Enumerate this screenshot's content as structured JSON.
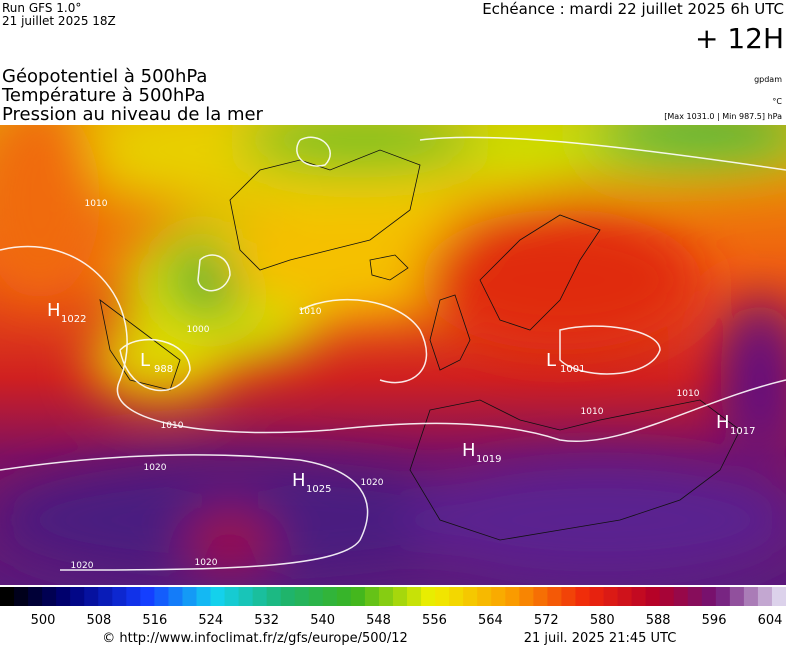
{
  "header": {
    "run": "Run GFS 1.0°",
    "run_date": "21 juillet 2025 18Z",
    "echeance": "Echéance : mardi 22 juillet 2025 6h UTC",
    "lead": "+ 12H"
  },
  "layers": [
    "Géopotentiel à 500hPa",
    "Température à 500hPa",
    "Pression au niveau de la mer"
  ],
  "units": [
    "gpdam",
    "°C",
    "[Max 1031.0 | Min 987.5] hPa"
  ],
  "pressure_centers": [
    {
      "type": "H",
      "value": "1022"
    },
    {
      "type": "L",
      "value": "988"
    },
    {
      "type": "H",
      "value": "1025"
    },
    {
      "type": "H",
      "value": "1019"
    },
    {
      "type": "L",
      "value": "1001"
    },
    {
      "type": "H",
      "value": "1017"
    }
  ],
  "isobar_labels": [
    "1010",
    "1000",
    "1010",
    "1010",
    "1020",
    "1020",
    "1020",
    "1020",
    "1010",
    "1010"
  ],
  "colorbar": {
    "ticks": [
      500,
      508,
      516,
      524,
      532,
      540,
      548,
      556,
      564,
      572,
      580,
      588,
      596,
      604
    ]
  },
  "footer": {
    "url": "© http://www.infoclimat.fr/z/gfs/europe/500/12",
    "timestamp": "21 juil. 2025 21:45 UTC"
  }
}
